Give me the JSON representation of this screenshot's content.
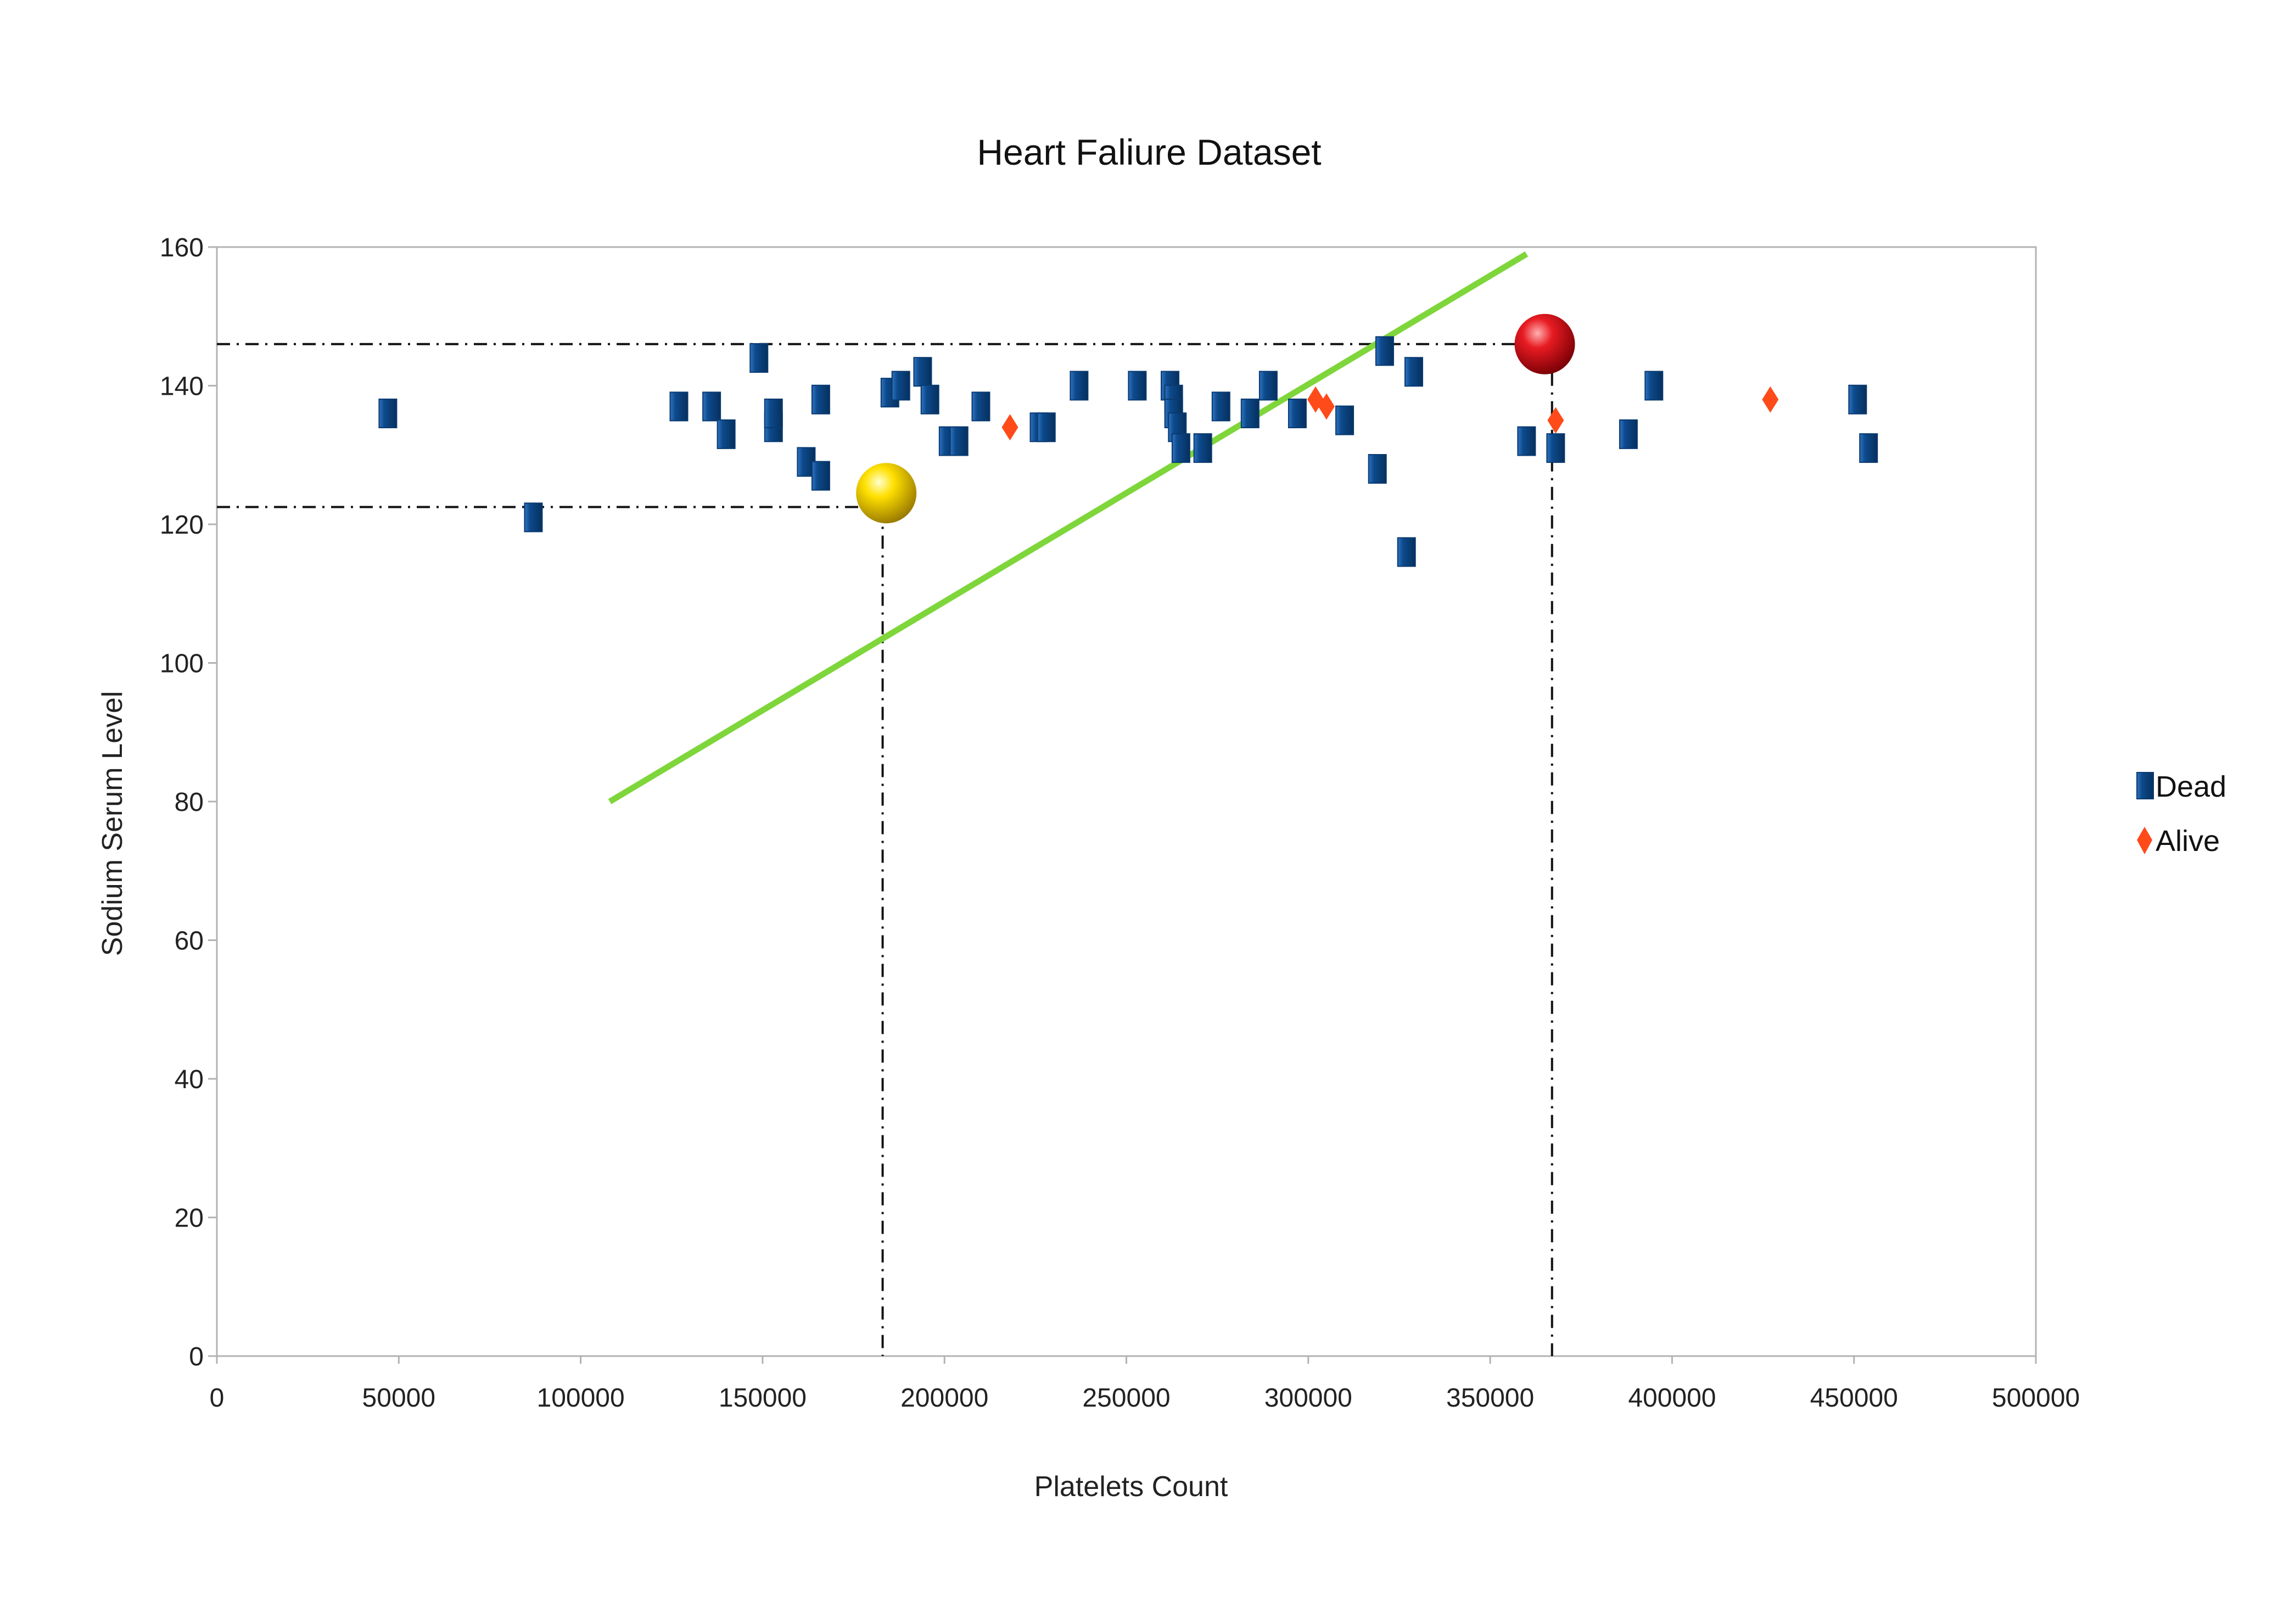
{
  "chart_data": {
    "type": "scatter",
    "title": "Heart Faliure Dataset",
    "xlabel": "Platelets Count",
    "ylabel": "Sodium Serum Level",
    "xlim": [
      0,
      500000
    ],
    "ylim": [
      0,
      160
    ],
    "x_ticks": [
      "0",
      "50000",
      "100000",
      "150000",
      "200000",
      "250000",
      "300000",
      "350000",
      "400000",
      "450000",
      "500000"
    ],
    "y_ticks": [
      "0",
      "20",
      "40",
      "60",
      "80",
      "100",
      "120",
      "140",
      "160"
    ],
    "grid": false,
    "legend_position": "right",
    "series": [
      {
        "name": "Dead",
        "marker": "square",
        "color": "#0d4a8c",
        "points": [
          [
            47000,
            136
          ],
          [
            87000,
            121
          ],
          [
            127000,
            137
          ],
          [
            136000,
            137
          ],
          [
            140000,
            133
          ],
          [
            149000,
            144
          ],
          [
            153000,
            134
          ],
          [
            153000,
            136
          ],
          [
            162000,
            129
          ],
          [
            166000,
            127
          ],
          [
            166000,
            138
          ],
          [
            185000,
            139
          ],
          [
            188000,
            140
          ],
          [
            194000,
            142
          ],
          [
            196000,
            138
          ],
          [
            201000,
            132
          ],
          [
            204000,
            132
          ],
          [
            210000,
            137
          ],
          [
            226000,
            134
          ],
          [
            228000,
            134
          ],
          [
            237000,
            140
          ],
          [
            253000,
            140
          ],
          [
            262000,
            140
          ],
          [
            263000,
            138
          ],
          [
            263000,
            136
          ],
          [
            264000,
            134
          ],
          [
            265000,
            131
          ],
          [
            271000,
            131
          ],
          [
            276000,
            137
          ],
          [
            284000,
            136
          ],
          [
            289000,
            140
          ],
          [
            297000,
            136
          ],
          [
            310000,
            135
          ],
          [
            319000,
            128
          ],
          [
            321000,
            145
          ],
          [
            327000,
            116
          ],
          [
            329000,
            142
          ],
          [
            360000,
            132
          ],
          [
            368000,
            131
          ],
          [
            388000,
            133
          ],
          [
            395000,
            140
          ],
          [
            451000,
            138
          ],
          [
            454000,
            131
          ]
        ]
      },
      {
        "name": "Alive",
        "marker": "diamond",
        "color": "#ff4a1a",
        "points": [
          [
            218000,
            134
          ],
          [
            302000,
            138
          ],
          [
            305000,
            137
          ],
          [
            368000,
            135
          ],
          [
            427000,
            138
          ]
        ]
      }
    ],
    "annotations": {
      "trend_line": {
        "from": [
          108000,
          80
        ],
        "to": [
          360000,
          159
        ],
        "color": "#7ed63a"
      },
      "highlight_points": [
        {
          "x": 184000,
          "y": 124.5,
          "color": "#f2d600"
        },
        {
          "x": 365000,
          "y": 146,
          "color": "#e3151d"
        }
      ],
      "reference_lines": [
        {
          "horizontal_y": 146,
          "x_from": 0,
          "x_to": 365000
        },
        {
          "vertical_x": 367000,
          "y_from": 0,
          "y_to": 146
        },
        {
          "horizontal_y": 122.5,
          "x_from": 0,
          "x_to": 184000
        },
        {
          "vertical_x": 183000,
          "y_from": 0,
          "y_to": 122.5
        }
      ]
    }
  }
}
